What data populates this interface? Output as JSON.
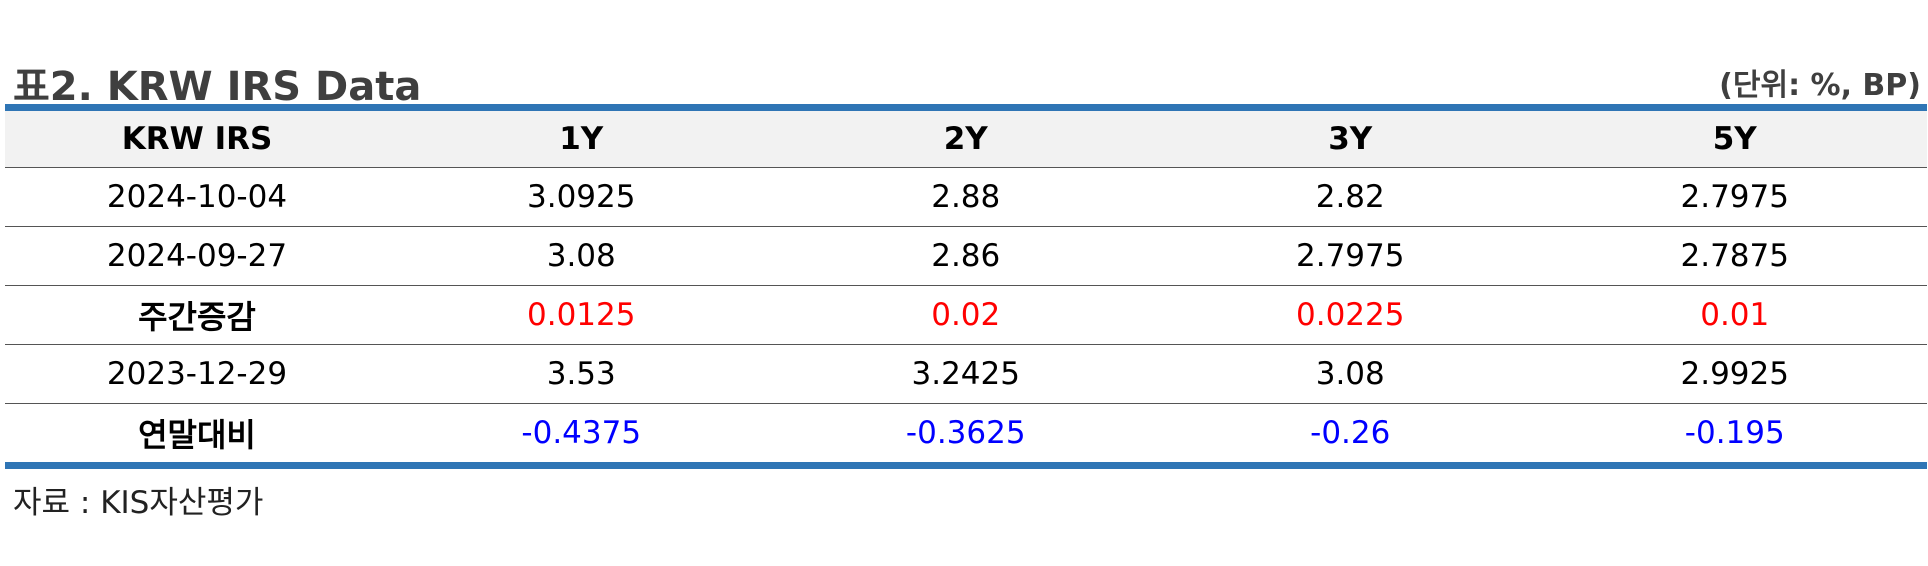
{
  "header": {
    "title": "표2. KRW IRS Data",
    "unit": "(단위: %, BP)"
  },
  "table": {
    "columns": [
      "KRW IRS",
      "1Y",
      "2Y",
      "3Y",
      "5Y"
    ],
    "rows": [
      {
        "label": "2024-10-04",
        "values": [
          "3.0925",
          "2.88",
          "2.82",
          "2.7975"
        ]
      },
      {
        "label": "2024-09-27",
        "values": [
          "3.08",
          "2.86",
          "2.7975",
          "2.7875"
        ]
      },
      {
        "label": "주간증감",
        "values": [
          "0.0125",
          "0.02",
          "0.0225",
          "0.01"
        ]
      },
      {
        "label": "2023-12-29",
        "values": [
          "3.53",
          "3.2425",
          "3.08",
          "2.9925"
        ]
      },
      {
        "label": "연말대비",
        "values": [
          "-0.4375",
          "-0.3625",
          "-0.26",
          "-0.195"
        ]
      }
    ]
  },
  "colors": {
    "rule": "#2f75b5",
    "header_bg": "#f2f2f2",
    "increase": "#ff0000",
    "decrease": "#0000ff"
  },
  "footer": {
    "source": "자료 : KIS자산평가"
  }
}
